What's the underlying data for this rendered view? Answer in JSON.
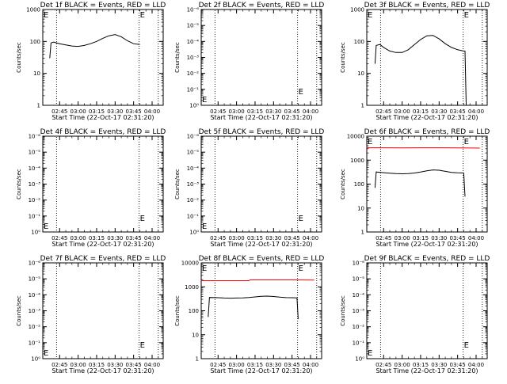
{
  "colors": {
    "black": "#000000",
    "red": "#ff0000",
    "background": "#ffffff"
  },
  "chart_data": [
    {
      "type": "line",
      "panel": "1f",
      "title": "Det 1f BLACK = Events, RED = LLD",
      "xlabel": "Start Time (22-Oct-17 02:31:20)",
      "ylabel": "Counts/sec",
      "yscale": "log",
      "yticklabels": [
        "1",
        "10",
        "100",
        "1000"
      ],
      "xticklabels": [
        "02:45",
        "03:00",
        "03:15",
        "03:30",
        "03:45",
        "04:00"
      ],
      "edge_markers": [
        "E",
        "E"
      ],
      "series": [
        {
          "color": "#000000",
          "x": [
            "02:37",
            "02:38",
            "02:40",
            "02:45",
            "02:50",
            "02:55",
            "03:00",
            "03:05",
            "03:10",
            "03:15",
            "03:20",
            "03:25",
            "03:30",
            "03:35",
            "03:40",
            "03:45",
            "03:50"
          ],
          "y": [
            30,
            90,
            95,
            85,
            78,
            72,
            70,
            75,
            85,
            100,
            125,
            150,
            165,
            140,
            105,
            85,
            80
          ]
        }
      ]
    },
    {
      "type": "line",
      "panel": "2f",
      "title": "Det 2f BLACK = Events, RED = LLD",
      "xlabel": "Start Time (22-Oct-17 02:31:20)",
      "ylabel": "Counts/sec",
      "yscale": "log",
      "yticklabels": [
        "10⁰",
        "10⁻¹",
        "10⁻²",
        "10⁻³",
        "10⁻⁴",
        "10⁻⁵",
        "10⁻⁶"
      ],
      "xticklabels": [
        "02:45",
        "03:00",
        "03:15",
        "03:30",
        "03:45",
        "04:00"
      ],
      "edge_markers": [
        "E",
        "E"
      ],
      "series": []
    },
    {
      "type": "line",
      "panel": "3f",
      "title": "Det 3f BLACK = Events, RED = LLD",
      "xlabel": "Start Time (22-Oct-17 02:31:20)",
      "ylabel": "Counts/sec",
      "yscale": "log",
      "yticklabels": [
        "1",
        "10",
        "100",
        "1000"
      ],
      "xticklabels": [
        "02:45",
        "03:00",
        "03:15",
        "03:30",
        "03:45",
        "04:00"
      ],
      "edge_markers": [
        "E",
        "E"
      ],
      "series": [
        {
          "color": "#000000",
          "x": [
            "02:38",
            "02:39",
            "02:42",
            "02:45",
            "02:50",
            "02:55",
            "03:00",
            "03:05",
            "03:10",
            "03:15",
            "03:20",
            "03:25",
            "03:30",
            "03:35",
            "03:40",
            "03:45",
            "03:50",
            "03:51",
            "03:52"
          ],
          "y": [
            20,
            75,
            80,
            65,
            50,
            45,
            45,
            55,
            80,
            115,
            150,
            155,
            120,
            85,
            65,
            55,
            50,
            50,
            1
          ]
        }
      ]
    },
    {
      "type": "line",
      "panel": "4f",
      "title": "Det 4f BLACK = Events, RED = LLD",
      "xlabel": "Start Time (22-Oct-17 02:31:20)",
      "ylabel": "Counts/sec",
      "yscale": "log",
      "yticklabels": [
        "10⁰",
        "10⁻¹",
        "10⁻²",
        "10⁻³",
        "10⁻⁴",
        "10⁻⁵",
        "10⁻⁶"
      ],
      "xticklabels": [
        "02:45",
        "03:00",
        "03:15",
        "03:30",
        "03:45",
        "04:00"
      ],
      "edge_markers": [
        "E",
        "E"
      ],
      "series": []
    },
    {
      "type": "line",
      "panel": "5f",
      "title": "Det 5f BLACK = Events, RED = LLD",
      "xlabel": "Start Time (22-Oct-17 02:31:20)",
      "ylabel": "Counts/sec",
      "yscale": "log",
      "yticklabels": [
        "10⁰",
        "10⁻¹",
        "10⁻²",
        "10⁻³",
        "10⁻⁴",
        "10⁻⁵",
        "10⁻⁶"
      ],
      "xticklabels": [
        "02:45",
        "03:00",
        "03:15",
        "03:30",
        "03:45",
        "04:00"
      ],
      "edge_markers": [
        "E",
        "E"
      ],
      "series": []
    },
    {
      "type": "line",
      "panel": "6f",
      "title": "Det 6f BLACK = Events, RED = LLD",
      "xlabel": "Start Time (22-Oct-17 02:31:20)",
      "ylabel": "Counts/sec",
      "yscale": "log",
      "yticklabels": [
        "1",
        "10",
        "100",
        "1000",
        "10000"
      ],
      "xticklabels": [
        "02:45",
        "03:00",
        "03:15",
        "03:30",
        "03:45",
        "04:00"
      ],
      "edge_markers": [
        "E",
        "E"
      ],
      "series": [
        {
          "color": "#000000",
          "x": [
            "02:38",
            "02:39",
            "02:45",
            "02:50",
            "02:55",
            "03:00",
            "03:05",
            "03:10",
            "03:15",
            "03:20",
            "03:25",
            "03:30",
            "03:35",
            "03:40",
            "03:45",
            "03:50",
            "03:51"
          ],
          "y": [
            70,
            320,
            300,
            285,
            275,
            270,
            275,
            290,
            320,
            360,
            390,
            380,
            340,
            305,
            295,
            290,
            30
          ]
        },
        {
          "color": "#ff0000",
          "x": [
            "02:31",
            "02:45",
            "03:00",
            "03:15",
            "03:30",
            "03:45",
            "04:03"
          ],
          "y": [
            3300,
            3300,
            3250,
            3300,
            3300,
            3250,
            3200
          ]
        }
      ]
    },
    {
      "type": "line",
      "panel": "7f",
      "title": "Det 7f BLACK = Events, RED = LLD",
      "xlabel": "Start Time (22-Oct-17 02:31:20)",
      "ylabel": "Counts/sec",
      "yscale": "log",
      "yticklabels": [
        "10⁰",
        "10⁻¹",
        "10⁻²",
        "10⁻³",
        "10⁻⁴",
        "10⁻⁵",
        "10⁻⁶"
      ],
      "xticklabels": [
        "02:45",
        "03:00",
        "03:15",
        "03:30",
        "03:45",
        "04:00"
      ],
      "edge_markers": [
        "E",
        "E"
      ],
      "series": []
    },
    {
      "type": "line",
      "panel": "8f",
      "title": "Det 8f BLACK = Events, RED = LLD",
      "xlabel": "Start Time (22-Oct-17 02:31:20)",
      "ylabel": "Counts/sec",
      "yscale": "log",
      "yticklabels": [
        "1",
        "10",
        "100",
        "1000",
        "10000"
      ],
      "xticklabels": [
        "02:45",
        "03:00",
        "03:15",
        "03:30",
        "03:45",
        "04:00"
      ],
      "edge_markers": [
        "E",
        "E"
      ],
      "series": [
        {
          "color": "#000000",
          "x": [
            "02:37",
            "02:38",
            "02:45",
            "02:50",
            "02:55",
            "03:00",
            "03:05",
            "03:10",
            "03:15",
            "03:20",
            "03:25",
            "03:30",
            "03:35",
            "03:40",
            "03:45",
            "03:49",
            "03:50"
          ],
          "y": [
            55,
            360,
            350,
            340,
            335,
            340,
            345,
            360,
            380,
            400,
            410,
            395,
            370,
            355,
            350,
            345,
            45
          ]
        },
        {
          "color": "#ff0000",
          "x": [
            "02:31",
            "02:45",
            "03:00",
            "03:10",
            "03:11",
            "03:30",
            "03:45",
            "04:03"
          ],
          "y": [
            1800,
            1800,
            1800,
            1800,
            1950,
            1950,
            1950,
            1900
          ]
        }
      ]
    },
    {
      "type": "line",
      "panel": "9f",
      "title": "Det 9f BLACK = Events, RED = LLD",
      "xlabel": "Start Time (22-Oct-17 02:31:20)",
      "ylabel": "Counts/sec",
      "yscale": "log",
      "yticklabels": [
        "10⁰",
        "10⁻¹",
        "10⁻²",
        "10⁻³",
        "10⁻⁴",
        "10⁻⁵",
        "10⁻⁶"
      ],
      "xticklabels": [
        "02:45",
        "03:00",
        "03:15",
        "03:30",
        "03:45",
        "04:00"
      ],
      "edge_markers": [
        "E",
        "E"
      ],
      "series": []
    }
  ]
}
